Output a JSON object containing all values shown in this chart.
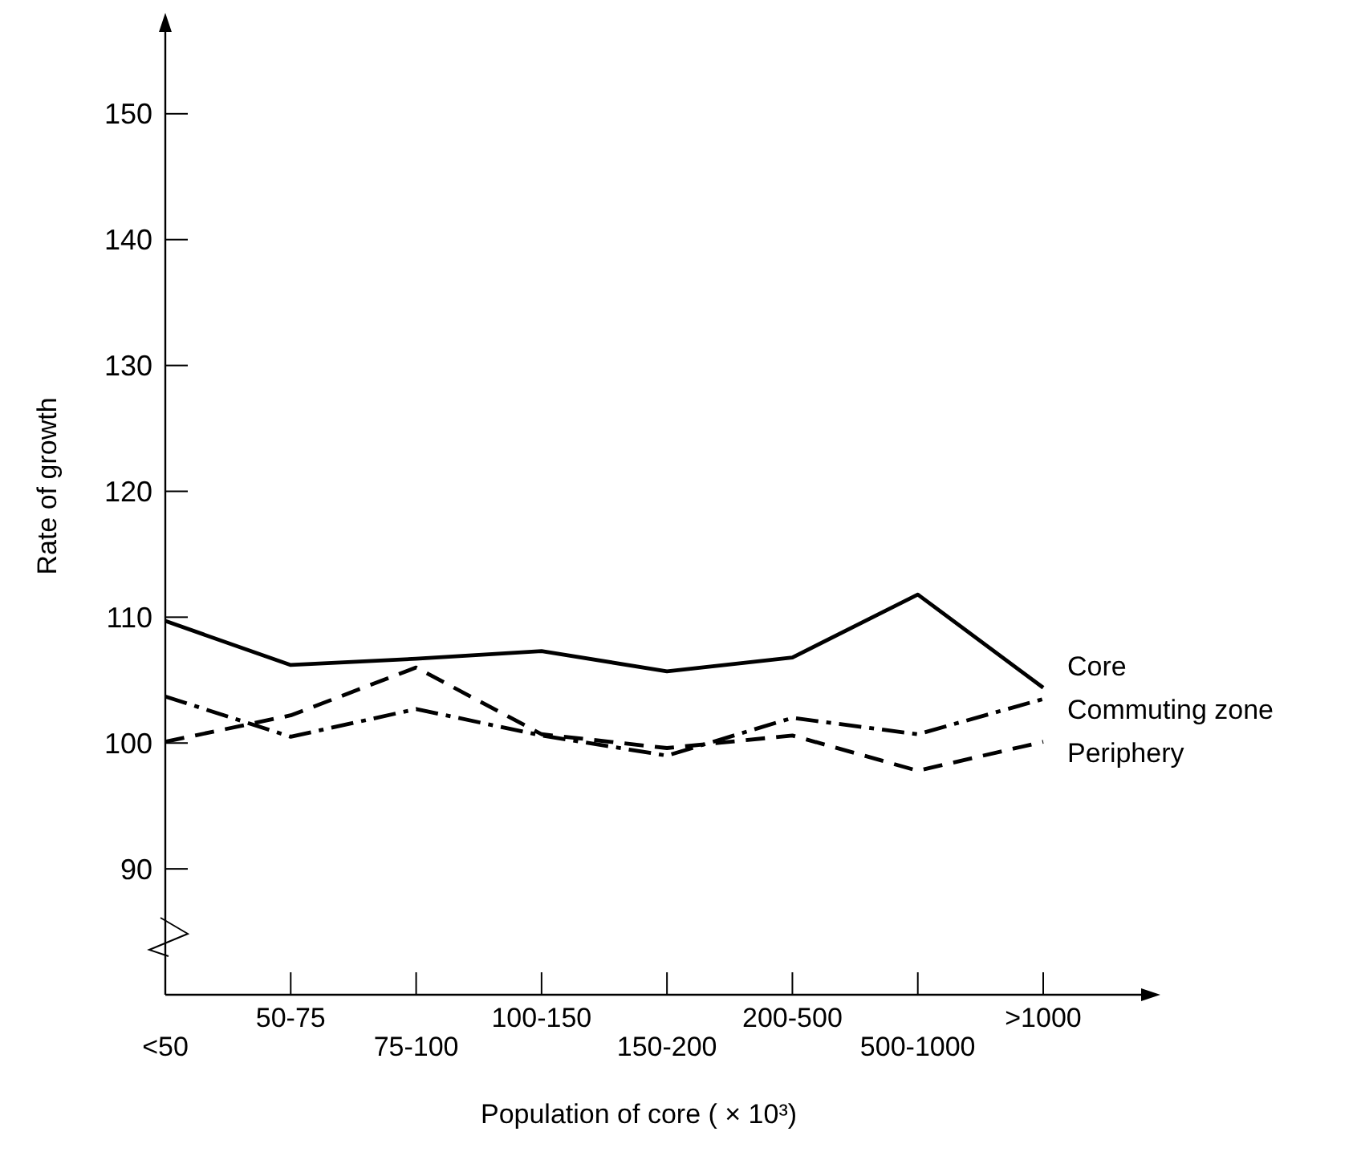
{
  "chart_data": {
    "type": "line",
    "xlabel": "Population of core ( × 10³)",
    "ylabel": "Rate of growth",
    "categories": [
      "<50",
      "50-75",
      "75-100",
      "100-150",
      "150-200",
      "200-500",
      "500-1000",
      ">1000"
    ],
    "ylim": [
      80,
      157
    ],
    "yticks": [
      90,
      100,
      110,
      120,
      130,
      140,
      150
    ],
    "grid": false,
    "marker": "none",
    "series": [
      {
        "name": "Core",
        "color": "#000000",
        "line_style": "solid",
        "values": [
          109.7,
          106.2,
          106.7,
          107.3,
          105.7,
          106.8,
          111.8,
          104.4
        ]
      },
      {
        "name": "Commuting zone",
        "color": "#000000",
        "line_style": "dashdot",
        "values": [
          103.7,
          100.5,
          102.7,
          100.6,
          99,
          102,
          100.7,
          103.5
        ]
      },
      {
        "name": "Periphery",
        "color": "#000000",
        "line_style": "dashed",
        "values": [
          100.1,
          102.2,
          106,
          100.7,
          99.6,
          100.6,
          97.8,
          100.1
        ]
      }
    ]
  }
}
